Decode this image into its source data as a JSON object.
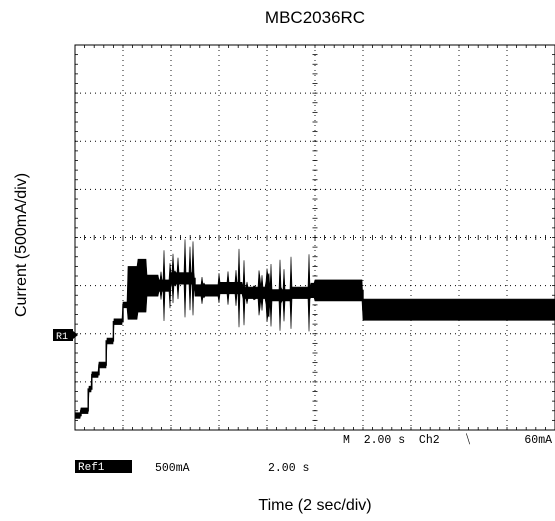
{
  "chart_data": {
    "type": "line",
    "title": "MBC2036RC",
    "xlabel": "Time (2 sec/div)",
    "ylabel": "Current (500mA/div)",
    "x_divisions": 10,
    "y_divisions": 8,
    "x_per_div_seconds": 2,
    "y_per_div_mA": 500,
    "xlim": [
      0,
      20
    ],
    "ylim": [
      -0.3,
      7.7
    ],
    "grid": true,
    "series": [
      {
        "x": [
          0,
          0.25,
          0.55,
          0.7,
          1.0,
          1.3,
          1.6,
          2.0,
          2.2,
          2.6,
          3.0,
          4.0,
          5.0,
          6.0,
          7.0,
          8.0,
          9.0,
          9.8,
          10.0,
          12.0,
          14.0,
          16.0,
          18.0,
          20.0
        ],
        "y": [
          0.0,
          0.1,
          0.55,
          0.85,
          1.05,
          1.55,
          1.95,
          2.3,
          2.55,
          2.7,
          2.7,
          2.85,
          2.6,
          2.65,
          2.55,
          2.5,
          2.55,
          2.6,
          2.6,
          2.2,
          2.2,
          2.2,
          2.2,
          2.2
        ]
      }
    ],
    "annotations": {
      "ref_marker": "R1",
      "timebase": "M  2.00 s  Ch2",
      "trigger_symbol": "⧹",
      "trigger_level": "60mA",
      "ref_label": "Ref1",
      "ref_scale": "500mA",
      "ref_time": "2.00 s"
    }
  }
}
